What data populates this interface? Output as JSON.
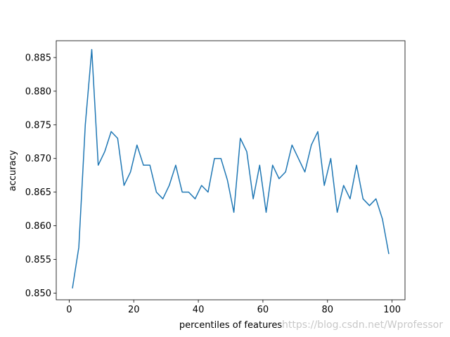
{
  "chart_data": {
    "type": "line",
    "title": "",
    "xlabel": "percentiles of features",
    "ylabel": "accuracy",
    "xlim": [
      -4,
      104
    ],
    "ylim": [
      0.849,
      0.8875
    ],
    "xticks": [
      0,
      20,
      40,
      60,
      80,
      100
    ],
    "yticks": [
      0.85,
      0.855,
      0.86,
      0.865,
      0.87,
      0.875,
      0.88,
      0.885
    ],
    "ytick_labels": [
      "0.850",
      "0.855",
      "0.860",
      "0.865",
      "0.870",
      "0.875",
      "0.880",
      "0.885"
    ],
    "grid": false,
    "legend": "none",
    "series": [
      {
        "color": "#1f77b4",
        "x": [
          1,
          3,
          5,
          7,
          9,
          11,
          13,
          15,
          17,
          19,
          21,
          23,
          25,
          27,
          29,
          31,
          33,
          35,
          37,
          39,
          41,
          43,
          45,
          47,
          49,
          51,
          53,
          55,
          57,
          59,
          61,
          63,
          65,
          67,
          69,
          71,
          73,
          75,
          77,
          79,
          81,
          83,
          85,
          87,
          89,
          91,
          93,
          95,
          97,
          99
        ],
        "values": [
          0.8507,
          0.8568,
          0.875,
          0.8862,
          0.869,
          0.871,
          0.874,
          0.873,
          0.866,
          0.868,
          0.872,
          0.869,
          0.869,
          0.865,
          0.864,
          0.866,
          0.869,
          0.865,
          0.865,
          0.864,
          0.866,
          0.865,
          0.87,
          0.87,
          0.8668,
          0.862,
          0.873,
          0.871,
          0.864,
          0.869,
          0.862,
          0.869,
          0.867,
          0.868,
          0.872,
          0.87,
          0.868,
          0.872,
          0.874,
          0.866,
          0.87,
          0.862,
          0.866,
          0.864,
          0.869,
          0.864,
          0.863,
          0.864,
          0.861,
          0.8558
        ]
      }
    ]
  },
  "watermark": "https://blog.csdn.net/Wprofessor"
}
